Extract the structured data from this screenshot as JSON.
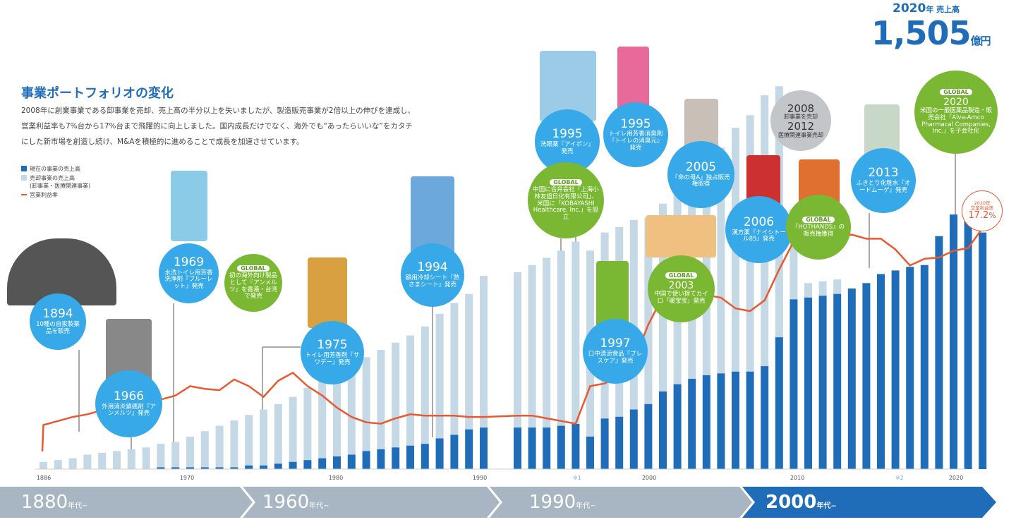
{
  "header": {
    "title": "事業ポートフォリオの変化",
    "description": "2008年に創業事業である卸事業を売却、売上高の半分以上を失いましたが、製造販売事業が2倍以上の伸びを達成し、営業利益率も7%台から17%台まで飛躍的に向上しました。国内成長だけでなく、海外でも“あったらいいな”をカタチにした新市場を創造し続け、M&Aを積極的に進めることで成長を加速させています。"
  },
  "legend": {
    "current": "現在の事業の売上高",
    "divested": "売却事業の売上高",
    "divested_sub": "(卸事業・医療関連事業)",
    "margin": "営業利益率"
  },
  "totals": {
    "year": "2020",
    "year_suffix": "年 売上高",
    "amount": "1,505",
    "unit": "億円"
  },
  "margin_badge": {
    "label1": "2020年",
    "label2": "営業利益率",
    "value": "17.2",
    "unit": "%"
  },
  "milestones": {
    "m1894": {
      "year": "1894",
      "text": "10種の自家製薬品を販売"
    },
    "m1966": {
      "year": "1966",
      "text": "外用消炎鎮痛剤『アンメルツ』発売"
    },
    "m1969": {
      "year": "1969",
      "text": "水洗トイレ用芳香洗浄剤『ブルーレット』発売"
    },
    "mg1969": {
      "tag": "GLOBAL",
      "text": "初の海外向け製品として『アンメルツ』を香港・台湾で発売"
    },
    "m1975": {
      "year": "1975",
      "text": "トイレ用芳香剤『サワデー』発売"
    },
    "m1994": {
      "year": "1994",
      "text": "額用冷却シート『熱さまシート』発売"
    },
    "m1995a": {
      "year": "1995",
      "text": "洗眼薬『アイボン』発売"
    },
    "m1995b": {
      "year": "1995",
      "text": "トイレ用芳香消臭剤『トイレの消臭元』発売"
    },
    "mg1995": {
      "tag": "GLOBAL",
      "text": "中国に合弁会社「上海小林友誼日化有限公司」、米国に「KOBAYASHI Healthcare, Inc.」を設立"
    },
    "m1997": {
      "year": "1997",
      "text": "口中清涼食品『ブレスケア』発売"
    },
    "mg2003": {
      "tag": "GLOBAL",
      "year": "2003",
      "text": "中国で使い捨てカイロ「暖宝宝」発売"
    },
    "m2005": {
      "year": "2005",
      "text": "『命の母A』独占販売権取得"
    },
    "m2006": {
      "year": "2006",
      "text": "漢方薬『ナイシトール85』発売"
    },
    "mg2006": {
      "tag": "GLOBAL",
      "text": "『HOTHANDS』の販売権獲得"
    },
    "m2008": {
      "year1": "2008",
      "text1": "卸事業を売却",
      "year2": "2012",
      "text2": "医療関連事業売却"
    },
    "m2013": {
      "year": "2013",
      "text": "ふきとり化粧水『オードムーゲ』発売"
    },
    "mg2020": {
      "tag": "GLOBAL",
      "year": "2020",
      "text": "米国の一般医薬品製造・販売会社「Alva-Amco Pharmacal Companies, Inc.」を子会社化"
    }
  },
  "axis_labels": [
    "1886",
    "1970",
    "1980",
    "1990",
    "※1",
    "2000",
    "2010",
    "※2",
    "2020"
  ],
  "decades": [
    {
      "label": "1880",
      "suffix": "年代~"
    },
    {
      "label": "1960",
      "suffix": "年代~"
    },
    {
      "label": "1990",
      "suffix": "年代~"
    },
    {
      "label": "2000",
      "suffix": "年代~"
    }
  ],
  "colors": {
    "current": "#1f6db8",
    "divested": "#c5d8e6",
    "margin": "#e8592f",
    "bubble_blue": "#37a9e8",
    "bubble_green": "#7ab833"
  },
  "chart_data": {
    "type": "bar",
    "ylabel": "",
    "note": "stacked bars (current + divested sales) with operating margin line",
    "series": [
      {
        "name": "現在の事業の売上高",
        "values": [
          0,
          0,
          0,
          0,
          0,
          0,
          0,
          0,
          1,
          1,
          1,
          1,
          1,
          1,
          2,
          2,
          3,
          4,
          5,
          6,
          7,
          8,
          10,
          11,
          12,
          13,
          14,
          17,
          19,
          22,
          23,
          23,
          23,
          23,
          24,
          25,
          18,
          28,
          29,
          33,
          36,
          43,
          47,
          50,
          52,
          53,
          54,
          54,
          57,
          73,
          94,
          95,
          96,
          97,
          100,
          103,
          108,
          110,
          112,
          113,
          129,
          141,
          147,
          131
        ]
      },
      {
        "name": "売却事業の売上高",
        "values": [
          4,
          5,
          6,
          8,
          9,
          10,
          11,
          12,
          13,
          14,
          17,
          20,
          23,
          26,
          28,
          31,
          33,
          36,
          40,
          43,
          46,
          49,
          52,
          55,
          58,
          61,
          65,
          69,
          73,
          75,
          84,
          86,
          90,
          94,
          97,
          101,
          103,
          103,
          105,
          105,
          103,
          104,
          107,
          108,
          116,
          125,
          135,
          142,
          150,
          139,
          50,
          8,
          8,
          8,
          0,
          0,
          0,
          0,
          0,
          0,
          0,
          0,
          0,
          0
        ]
      },
      {
        "name": "営業利益率",
        "values": [
          2.5,
          2.8,
          3.1,
          3.3,
          3.6,
          3.8,
          4.0,
          4.3,
          4.4,
          4.7,
          5.4,
          5.2,
          5.1,
          5.9,
          5.4,
          4.6,
          5.8,
          6.4,
          5.4,
          4.7,
          3.8,
          3.1,
          2.7,
          2.6,
          3.0,
          3.3,
          3.2,
          3.2,
          3.2,
          3.1,
          3.1,
          3.2,
          3.2,
          3.0,
          2.8,
          2.6,
          5.4,
          5.6,
          6.2,
          7.3,
          10.0,
          12.1,
          13.0,
          12.0,
          12.2,
          12.0,
          11.2,
          11.0,
          11.8,
          14.1,
          16.2,
          16.7,
          17.0,
          16.6,
          16.7,
          16.4,
          16.4,
          15.6,
          14.4,
          14.9,
          15.0,
          15.5,
          15.7,
          17.2
        ]
      }
    ]
  }
}
